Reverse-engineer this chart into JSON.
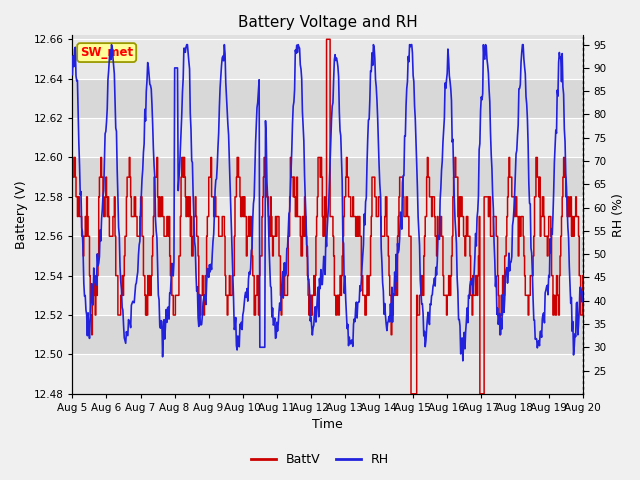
{
  "title": "Battery Voltage and RH",
  "xlabel": "Time",
  "ylabel_left": "Battery (V)",
  "ylabel_right": "RH (%)",
  "annotation": "SW_met",
  "ylim_left": [
    12.48,
    12.662
  ],
  "ylim_right": [
    20,
    97
  ],
  "yticks_left": [
    12.48,
    12.5,
    12.52,
    12.54,
    12.56,
    12.58,
    12.6,
    12.62,
    12.64,
    12.66
  ],
  "yticks_right": [
    25,
    30,
    35,
    40,
    45,
    50,
    55,
    60,
    65,
    70,
    75,
    80,
    85,
    90,
    95
  ],
  "xticklabels": [
    "Aug 5",
    "Aug 6",
    "Aug 7",
    "Aug 8",
    "Aug 9",
    "Aug 10",
    "Aug 11",
    "Aug 12",
    "Aug 13",
    "Aug 14",
    "Aug 15",
    "Aug 16",
    "Aug 17",
    "Aug 18",
    "Aug 19",
    "Aug 20"
  ],
  "batt_color": "#cc0000",
  "rh_color": "#2222dd",
  "legend_batt": "BattV",
  "legend_rh": "RH",
  "background_inner": "#e0e0e0",
  "background_outer": "#f0f0f0",
  "band_color1": "#d8d8d8",
  "band_color2": "#e8e8e8",
  "title_fontsize": 11,
  "label_fontsize": 9,
  "tick_fontsize": 7.5,
  "annotation_bg": "#ffff99",
  "annotation_border": "#999900",
  "num_points": 720
}
